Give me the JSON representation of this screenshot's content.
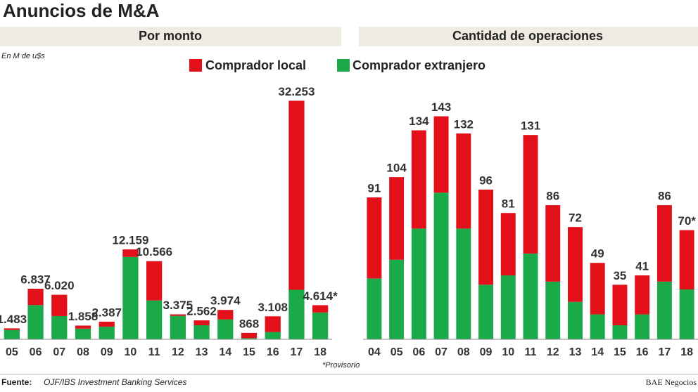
{
  "title": "Anuncios de M&A",
  "unit": "En M de u$s",
  "note": "*Provisorio",
  "source_label": "Fuente:",
  "source": "OJF/IBS Investment Banking Services",
  "credit": "BAE Negocios",
  "chart_data": [
    {
      "type": "bar",
      "stacked": true,
      "title": "Por monto",
      "categories": [
        "05",
        "06",
        "07",
        "08",
        "09",
        "10",
        "11",
        "12",
        "13",
        "14",
        "15",
        "16",
        "17",
        "18"
      ],
      "series": [
        {
          "name": "Comprador local",
          "color": "#e3101a",
          "values": [
            219,
            2211,
            2881,
            413,
            675,
            1026,
            5309,
            205,
            666,
            1290,
            712,
            2124,
            25557,
            985
          ]
        },
        {
          "name": "Comprador extranjero",
          "color": "#1aaa4a",
          "values": [
            1264,
            4626,
            3139,
            1445,
            1712,
            11133,
            5257,
            3170,
            1896,
            2684,
            156,
            984,
            6696,
            3629
          ]
        }
      ],
      "totals": [
        {
          "value": 1483,
          "label": "1.483"
        },
        {
          "value": 6837,
          "label": "6.837"
        },
        {
          "value": 6020,
          "label": "6.020"
        },
        {
          "value": 1858,
          "label": "1.858"
        },
        {
          "value": 2387,
          "label": "2.387"
        },
        {
          "value": 12159,
          "label": "12.159"
        },
        {
          "value": 10566,
          "label": "10.566"
        },
        {
          "value": 3375,
          "label": "3.375"
        },
        {
          "value": 2562,
          "label": "2.562"
        },
        {
          "value": 3974,
          "label": "3.974"
        },
        {
          "value": 868,
          "label": "868"
        },
        {
          "value": 3108,
          "label": "3.108"
        },
        {
          "value": 32253,
          "label": "32.253"
        },
        {
          "value": 4614,
          "label": "4.614*"
        }
      ],
      "ylim": [
        0,
        34000
      ]
    },
    {
      "type": "bar",
      "stacked": true,
      "title": "Cantidad de operaciones",
      "categories": [
        "04",
        "05",
        "06",
        "07",
        "08",
        "09",
        "10",
        "11",
        "12",
        "13",
        "14",
        "15",
        "16",
        "17",
        "18"
      ],
      "series": [
        {
          "color": "#e3101a",
          "values": [
            52,
            53,
            63,
            49,
            61,
            61,
            40,
            76,
            49,
            48,
            33,
            26,
            25,
            49,
            38
          ]
        },
        {
          "color": "#1aaa4a",
          "values": [
            39,
            51,
            71,
            94,
            71,
            35,
            41,
            55,
            37,
            24,
            16,
            9,
            16,
            37,
            32
          ]
        }
      ],
      "totals": [
        91,
        104,
        134,
        143,
        132,
        96,
        81,
        131,
        86,
        72,
        49,
        35,
        41,
        86,
        {
          "value": 70,
          "label": "70*"
        }
      ],
      "ylim": [
        0,
        150
      ]
    }
  ]
}
